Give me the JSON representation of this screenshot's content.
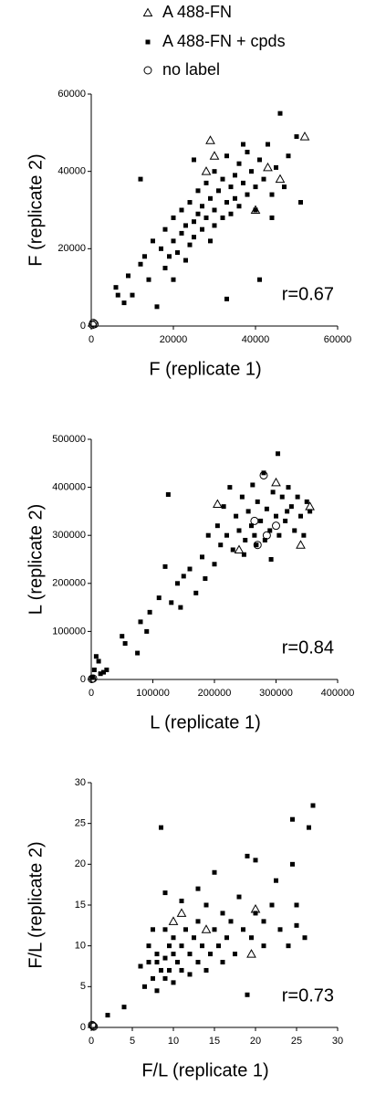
{
  "chart_data": [
    {
      "type": "scatter",
      "xlabel": "F (replicate 1)",
      "ylabel": "F (replicate 2)",
      "annotation": "r=0.67",
      "xlim": [
        0,
        60000
      ],
      "ylim": [
        0,
        60000
      ],
      "xticks": [
        0,
        20000,
        40000,
        60000
      ],
      "yticks": [
        0,
        20000,
        40000,
        60000
      ],
      "series": [
        {
          "name": "A 488-FN",
          "marker": "triangle",
          "color": "#000000",
          "x": [
            29000,
            30000,
            28000,
            43000,
            46000,
            52000,
            40000
          ],
          "values": [
            48000,
            44000,
            40000,
            41000,
            38000,
            49000,
            30000
          ]
        },
        {
          "name": "A 488-FN + cpds",
          "marker": "square",
          "color": "#000000",
          "x": [
            6000,
            6500,
            8000,
            9000,
            10000,
            12000,
            13000,
            14000,
            15000,
            16000,
            17000,
            18000,
            18000,
            19000,
            20000,
            20000,
            21000,
            22000,
            22000,
            23000,
            23000,
            24000,
            24000,
            25000,
            25000,
            26000,
            26000,
            27000,
            27000,
            28000,
            28000,
            29000,
            29000,
            30000,
            30000,
            30000,
            31000,
            32000,
            32000,
            33000,
            33000,
            34000,
            34000,
            35000,
            35000,
            36000,
            36000,
            37000,
            38000,
            38000,
            39000,
            40000,
            40000,
            41000,
            41000,
            42000,
            43000,
            44000,
            45000,
            46000,
            47000,
            48000,
            50000,
            51000,
            33000,
            12000,
            25000,
            37000,
            20000,
            44000
          ],
          "values": [
            10000,
            8000,
            6000,
            13000,
            8000,
            16000,
            18000,
            12000,
            22000,
            5000,
            20000,
            15000,
            25000,
            18000,
            22000,
            28000,
            19000,
            24000,
            30000,
            26000,
            17000,
            21000,
            32000,
            27000,
            23000,
            29000,
            35000,
            25000,
            31000,
            28000,
            37000,
            22000,
            33000,
            30000,
            26000,
            40000,
            35000,
            28000,
            38000,
            32000,
            44000,
            36000,
            29000,
            39000,
            33000,
            42000,
            31000,
            37000,
            45000,
            34000,
            40000,
            36000,
            30000,
            43000,
            12000,
            38000,
            47000,
            34000,
            41000,
            55000,
            36000,
            44000,
            49000,
            32000,
            7000,
            38000,
            43000,
            47000,
            12000,
            28000
          ]
        },
        {
          "name": "no label",
          "marker": "circle",
          "color": "#000000",
          "x": [
            500,
            800,
            300
          ],
          "values": [
            800,
            500,
            300
          ]
        }
      ]
    },
    {
      "type": "scatter",
      "xlabel": "L (replicate 1)",
      "ylabel": "L (replicate 2)",
      "annotation": "r=0.84",
      "xlim": [
        0,
        400000
      ],
      "ylim": [
        0,
        500000
      ],
      "xticks": [
        0,
        100000,
        200000,
        300000,
        400000
      ],
      "yticks": [
        0,
        100000,
        200000,
        300000,
        400000,
        500000
      ],
      "series": [
        {
          "marker": "triangle",
          "color": "#000000",
          "x": [
            205000,
            300000,
            355000,
            340000,
            240000
          ],
          "values": [
            365000,
            410000,
            360000,
            280000,
            270000
          ]
        },
        {
          "marker": "square",
          "color": "#000000",
          "x": [
            2000,
            5000,
            8000,
            12000,
            15000,
            20000,
            25000,
            50000,
            55000,
            75000,
            80000,
            90000,
            95000,
            110000,
            120000,
            125000,
            130000,
            140000,
            145000,
            150000,
            160000,
            170000,
            180000,
            185000,
            190000,
            200000,
            205000,
            210000,
            215000,
            220000,
            225000,
            230000,
            235000,
            240000,
            245000,
            250000,
            255000,
            260000,
            262000,
            265000,
            270000,
            275000,
            280000,
            282000,
            285000,
            290000,
            295000,
            300000,
            303000,
            305000,
            310000,
            315000,
            320000,
            325000,
            330000,
            335000,
            340000,
            345000,
            350000,
            355000,
            248000,
            292000,
            268000,
            318000
          ],
          "values": [
            5000,
            20000,
            48000,
            38000,
            12000,
            15000,
            20000,
            90000,
            75000,
            55000,
            120000,
            100000,
            140000,
            170000,
            235000,
            385000,
            160000,
            200000,
            150000,
            215000,
            230000,
            180000,
            255000,
            210000,
            300000,
            240000,
            320000,
            280000,
            360000,
            300000,
            400000,
            270000,
            340000,
            310000,
            380000,
            290000,
            350000,
            320000,
            405000,
            300000,
            370000,
            330000,
            430000,
            290000,
            355000,
            310000,
            390000,
            340000,
            470000,
            300000,
            380000,
            330000,
            400000,
            360000,
            310000,
            380000,
            340000,
            300000,
            370000,
            350000,
            260000,
            250000,
            280000,
            350000
          ]
        },
        {
          "marker": "circle",
          "color": "#000000",
          "x": [
            1000,
            3000,
            280000,
            285000,
            270000,
            300000,
            265000
          ],
          "values": [
            1000,
            2000,
            425000,
            300000,
            280000,
            320000,
            330000
          ]
        }
      ]
    },
    {
      "type": "scatter",
      "xlabel": "F/L (replicate 1)",
      "ylabel": "F/L (replicate 2)",
      "annotation": "r=0.73",
      "xlim": [
        0,
        30
      ],
      "ylim": [
        0,
        30
      ],
      "xticks": [
        0,
        5,
        10,
        15,
        20,
        25,
        30
      ],
      "yticks": [
        0,
        5,
        10,
        15,
        20,
        25,
        30
      ],
      "series": [
        {
          "marker": "triangle",
          "color": "#000000",
          "x": [
            10,
            11,
            14,
            19.5,
            20
          ],
          "values": [
            13,
            14,
            12,
            9,
            14.5
          ]
        },
        {
          "marker": "square",
          "color": "#000000",
          "x": [
            2,
            4,
            6,
            6.5,
            7,
            7,
            7.5,
            8,
            8,
            8,
            8.5,
            8.5,
            9,
            9,
            9,
            9.5,
            9.5,
            10,
            10,
            10,
            10.5,
            11,
            11,
            11.5,
            12,
            12,
            12.5,
            13,
            13,
            13.5,
            14,
            14,
            14.5,
            15,
            15,
            15.5,
            16,
            16,
            16.5,
            17,
            17.5,
            18,
            18.5,
            19,
            19,
            19.5,
            20,
            20,
            21,
            21,
            22,
            22.5,
            23,
            24,
            24.5,
            24.5,
            25,
            25,
            26,
            26.5,
            27,
            11,
            13,
            7.5,
            9
          ],
          "values": [
            1.5,
            2.5,
            7.5,
            5,
            8,
            10,
            6,
            4.5,
            8,
            9,
            24.5,
            7,
            12,
            6,
            8.5,
            10,
            7,
            9,
            5.5,
            11,
            8,
            10,
            7,
            12,
            9,
            6.5,
            11,
            8,
            13,
            10,
            7,
            15,
            9,
            12,
            19,
            10,
            8,
            14,
            11,
            13,
            9,
            16,
            12,
            4,
            21,
            11,
            20.5,
            14,
            13,
            10,
            15,
            18,
            12,
            10,
            25.5,
            20,
            15,
            12.5,
            11,
            24.5,
            27.2,
            15.5,
            17,
            12,
            16.5
          ]
        },
        {
          "marker": "circle",
          "color": "#000000",
          "x": [
            0.2,
            0.3,
            0.1
          ],
          "values": [
            0.2,
            0.1,
            0.3
          ]
        }
      ]
    }
  ]
}
